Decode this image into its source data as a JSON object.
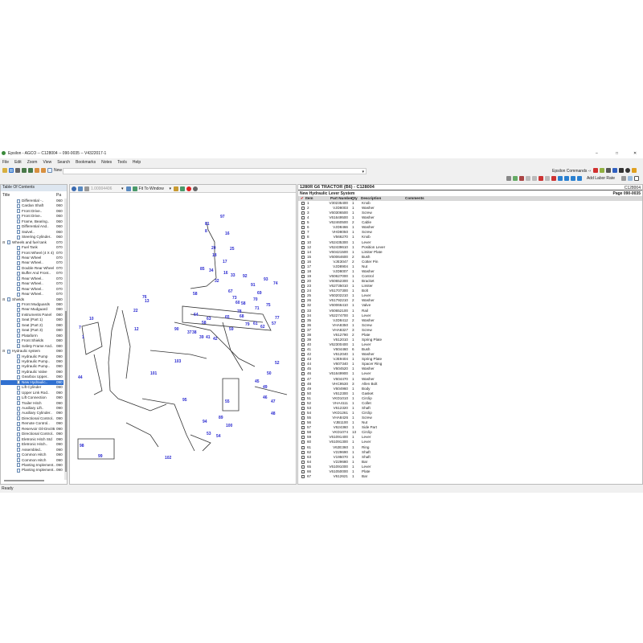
{
  "window": {
    "title": "Epsilon - AGCO -- C128004 -- 090-0035 -- V4322017-1",
    "minimize": "–",
    "maximize": "□",
    "close": "✕"
  },
  "menu": [
    "File",
    "Edit",
    "Zoom",
    "View",
    "Search",
    "Bookmarks",
    "Notes",
    "Tools",
    "Help"
  ],
  "toolbar": {
    "doc_label": "New Hydraulic Lever System",
    "commands_label": "Epsilon Commands -›"
  },
  "toc": {
    "title": "Table Of Contents",
    "col_title": "Title",
    "col_page": "Pa",
    "items": [
      {
        "label": "Differential -..",
        "page": "060",
        "level": 2
      },
      {
        "label": "Cardan Shaft",
        "page": "060",
        "level": 2
      },
      {
        "label": "Front Drive..",
        "page": "060",
        "level": 2
      },
      {
        "label": "Front Drive..",
        "page": "060",
        "level": 2
      },
      {
        "label": "Frame, Bearing..",
        "page": "060",
        "level": 2
      },
      {
        "label": "Differential And..",
        "page": "060",
        "level": 2
      },
      {
        "label": "Swivel..",
        "page": "060",
        "level": 2
      },
      {
        "label": "Steering Cylinder..",
        "page": "060",
        "level": 2
      },
      {
        "label": "Wheels and fuel tank",
        "page": "070",
        "level": 1
      },
      {
        "label": "Fuel Tank",
        "page": "070",
        "level": 2
      },
      {
        "label": "Front Wheel (4 X 4)",
        "page": "070",
        "level": 2
      },
      {
        "label": "Rear Wheel",
        "page": "070",
        "level": 2
      },
      {
        "label": "Rear Wheel..",
        "page": "070",
        "level": 2
      },
      {
        "label": "Double Rear Wheel",
        "page": "070",
        "level": 2
      },
      {
        "label": "Buffer And Front..",
        "page": "070",
        "level": 2
      },
      {
        "label": "Rear Wheel..",
        "page": "070",
        "level": 2
      },
      {
        "label": "Rear Wheel..",
        "page": "070",
        "level": 2
      },
      {
        "label": "Rear Wheel..",
        "page": "070",
        "level": 2
      },
      {
        "label": "Rear Wheel..",
        "page": "070",
        "level": 2
      },
      {
        "label": "Shields",
        "page": "080",
        "level": 1
      },
      {
        "label": "Front Mudguards",
        "page": "080",
        "level": 2
      },
      {
        "label": "Rear Mudguard",
        "page": "080",
        "level": 2
      },
      {
        "label": "Instruments Panel",
        "page": "080",
        "level": 2
      },
      {
        "label": "Seat (Part 1)",
        "page": "080",
        "level": 2
      },
      {
        "label": "Seat (Part 2)",
        "page": "080",
        "level": 2
      },
      {
        "label": "Seat (Part 3)",
        "page": "080",
        "level": 2
      },
      {
        "label": "Plataform",
        "page": "080",
        "level": 2
      },
      {
        "label": "Front Shields",
        "page": "080",
        "level": 2
      },
      {
        "label": "Safety Frame And..",
        "page": "080",
        "level": 2
      },
      {
        "label": "Hydraulic system",
        "page": "090",
        "level": 1
      },
      {
        "label": "Hydraulic Pump",
        "page": "090",
        "level": 2
      },
      {
        "label": "Hydraulic Pump..",
        "page": "090",
        "level": 2
      },
      {
        "label": "Hydraulic Pump..",
        "page": "090",
        "level": 2
      },
      {
        "label": "Hydraulic Valve",
        "page": "090",
        "level": 2
      },
      {
        "label": "Gearbox Upper..",
        "page": "090",
        "level": 2
      },
      {
        "label": "New Hydraulic..",
        "page": "090",
        "level": 2,
        "selected": true
      },
      {
        "label": "Lift Cylinder",
        "page": "090",
        "level": 2
      },
      {
        "label": "Upper Link Rod..",
        "page": "090",
        "level": 2
      },
      {
        "label": "Lift Connection",
        "page": "090",
        "level": 2
      },
      {
        "label": "Trailer Hitch",
        "page": "090",
        "level": 2
      },
      {
        "label": "Auxiliary Lift..",
        "page": "090",
        "level": 2
      },
      {
        "label": "Auxiliary Cylinder..",
        "page": "090",
        "level": 2
      },
      {
        "label": "Directional Control..",
        "page": "090",
        "level": 2
      },
      {
        "label": "Remote Control..",
        "page": "090",
        "level": 2
      },
      {
        "label": "Reservoir Oil-Dnc05",
        "page": "090",
        "level": 2
      },
      {
        "label": "Directional Control..",
        "page": "090",
        "level": 2
      },
      {
        "label": "Eletronic Hitch Std",
        "page": "090",
        "level": 2
      },
      {
        "label": "Eletronic Hitch..",
        "page": "090",
        "level": 2
      },
      {
        "label": "Assembled..",
        "page": "090",
        "level": 2
      },
      {
        "label": "Common Hitch",
        "page": "090",
        "level": 2
      },
      {
        "label": "Common Hitch",
        "page": "090",
        "level": 2
      },
      {
        "label": "Planting Implement..",
        "page": "090",
        "level": 2
      },
      {
        "label": "Planting Implement..",
        "page": "090",
        "level": 2
      }
    ]
  },
  "viewer": {
    "zoom_value": "1.00004406",
    "fit_label": "Fit To Window",
    "callouts": [
      "97",
      "81",
      "8",
      "16",
      "20",
      "25",
      "18",
      "17",
      "85",
      "34",
      "16",
      "33",
      "32",
      "92",
      "93",
      "91",
      "74",
      "58",
      "67",
      "69",
      "73",
      "70",
      "60",
      "71",
      "58",
      "78",
      "75",
      "65",
      "77",
      "58",
      "64",
      "63",
      "68",
      "79",
      "61",
      "62",
      "59",
      "57",
      "76",
      "13",
      "22",
      "10",
      "7",
      "1",
      "12",
      "90",
      "37",
      "38",
      "39",
      "41",
      "42",
      "44",
      "103",
      "101",
      "95",
      "94",
      "55",
      "100",
      "98",
      "99",
      "102",
      "52",
      "50",
      "49",
      "45",
      "46",
      "47",
      "48",
      "89",
      "53",
      "54"
    ]
  },
  "parts": {
    "title": "1280R G6 TRACTOR (B6) - C128004",
    "subtitle": "New Hydraulic Lever System",
    "code": "C128004",
    "page": "Page 090-0035",
    "add_labor_rate": "Add Labor Rate",
    "columns": {
      "item": "Item",
      "part_number": "Part Number",
      "qty": "Qty",
      "description": "Description",
      "comments": "Comments"
    },
    "rows": [
      [
        "1",
        "V30235400",
        "1",
        "Knob"
      ],
      [
        "2",
        "VJD8003",
        "1",
        "Washer"
      ],
      [
        "3",
        "V60306500",
        "1",
        "Screw"
      ],
      [
        "4",
        "V61649500",
        "1",
        "Washer"
      ],
      [
        "5",
        "V62460500",
        "2",
        "Cable"
      ],
      [
        "6",
        "VJD8466",
        "1",
        "Washer"
      ],
      [
        "7",
        "VHD8050",
        "1",
        "Screw"
      ],
      [
        "8",
        "V566270",
        "1",
        "Knob"
      ],
      [
        "10",
        "V62435300",
        "1",
        "Lever"
      ],
      [
        "12",
        "V62439610",
        "1",
        "Position Lever"
      ],
      [
        "14",
        "V60421500",
        "1",
        "Limiter Plate"
      ],
      [
        "15",
        "V60064600",
        "2",
        "Bush"
      ],
      [
        "16",
        "VJE3047",
        "2",
        "Cotter Pin"
      ],
      [
        "17",
        "VJD8904",
        "1",
        "Nut"
      ],
      [
        "18",
        "VJD8007",
        "1",
        "Washer"
      ],
      [
        "19",
        "V60627000",
        "1",
        "Control"
      ],
      [
        "20",
        "V60652300",
        "1",
        "Bracket"
      ],
      [
        "23",
        "V62735010",
        "1",
        "Limiter"
      ],
      [
        "24",
        "V61707300",
        "1",
        "Bolt"
      ],
      [
        "25",
        "V60202210",
        "1",
        "Lever"
      ],
      [
        "26",
        "V61792210",
        "2",
        "Washer"
      ],
      [
        "32",
        "V60066410",
        "1",
        "Valve"
      ],
      [
        "33",
        "V60652100",
        "1",
        "Rail"
      ],
      [
        "34",
        "V62274700",
        "1",
        "Lever"
      ],
      [
        "35",
        "VJD8412",
        "2",
        "Washer"
      ],
      [
        "36",
        "VHA8350",
        "1",
        "Screw"
      ],
      [
        "37",
        "VHA8327",
        "3",
        "Screw"
      ],
      [
        "38",
        "V612790",
        "2",
        "Plate"
      ],
      [
        "39",
        "V612010",
        "1",
        "Spring Plate"
      ],
      [
        "40",
        "V62300400",
        "1",
        "Lever"
      ],
      [
        "41",
        "V604460",
        "6",
        "Bush"
      ],
      [
        "42",
        "V612040",
        "1",
        "Washer"
      ],
      [
        "43",
        "VJE9404",
        "1",
        "Spring Plate"
      ],
      [
        "44",
        "V607340",
        "1",
        "Spacer Ring"
      ],
      [
        "45",
        "V604520",
        "1",
        "Washer"
      ],
      [
        "46",
        "V61649900",
        "1",
        "Lever"
      ],
      [
        "47",
        "V604470",
        "1",
        "Washer"
      ],
      [
        "48",
        "VHC9530",
        "3",
        "Allen Bolt"
      ],
      [
        "49",
        "V604960",
        "1",
        "Body"
      ],
      [
        "50",
        "V612300",
        "1",
        "Gasket"
      ],
      [
        "51",
        "VKD1010",
        "1",
        "Circlip"
      ],
      [
        "52",
        "VHA4111",
        "1",
        "Collet"
      ],
      [
        "53",
        "V612320",
        "1",
        "Shaft"
      ],
      [
        "54",
        "VKD1261",
        "1",
        "Circlip"
      ],
      [
        "55",
        "VHA8426",
        "1",
        "Screw"
      ],
      [
        "56",
        "VJB1100",
        "1",
        "Nut"
      ],
      [
        "57",
        "V624360",
        "1",
        "Side Part"
      ],
      [
        "58",
        "VKD1074",
        "13",
        "Circlip"
      ],
      [
        "59",
        "V61091400",
        "1",
        "Lever"
      ],
      [
        "60",
        "V61091300",
        "1",
        "Lever"
      ],
      [
        "61",
        "V62E360",
        "1",
        "Ring"
      ],
      [
        "62",
        "V229690",
        "1",
        "Shaft"
      ],
      [
        "63",
        "V195070",
        "1",
        "Shaft"
      ],
      [
        "64",
        "V229680",
        "1",
        "Bar"
      ],
      [
        "65",
        "V61091000",
        "1",
        "Lever"
      ],
      [
        "66",
        "V61050000",
        "1",
        "Plate"
      ],
      [
        "67",
        "V612621",
        "1",
        "Bar"
      ]
    ]
  },
  "status": "Ready",
  "colors": {
    "selection": "#3070d0",
    "callout": "#2a2ad0",
    "header_bar": "#c8c8c8"
  }
}
